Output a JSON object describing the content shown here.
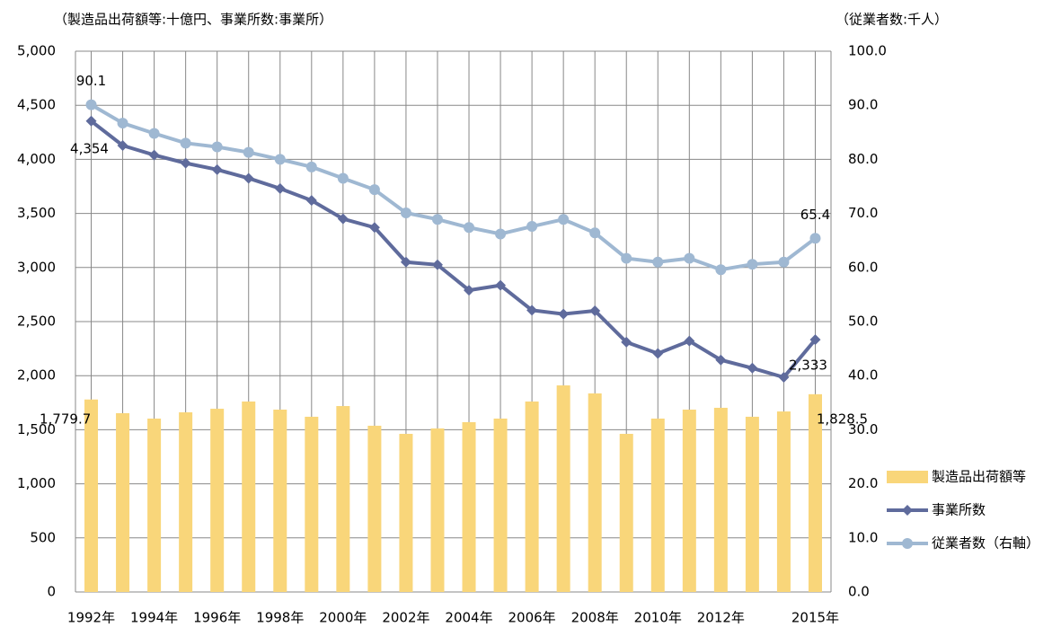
{
  "chart_data": {
    "type": "bar-line",
    "left_axis_label": "（製造品出荷額等:十億円、事業所数:事業所）",
    "right_axis_label": "（従業者数:千人）",
    "categories": [
      "1992年",
      null,
      "1994年",
      null,
      "1996年",
      null,
      "1998年",
      null,
      "2000年",
      null,
      "2002年",
      null,
      "2004年",
      null,
      "2006年",
      null,
      "2008年",
      null,
      "2010年",
      null,
      "2012年",
      null,
      null,
      "2015年"
    ],
    "series": [
      {
        "name": "製造品出荷額等",
        "type": "bar",
        "color": "#f9d67a",
        "values": [
          1779.7,
          1653,
          1603,
          1661,
          1694,
          1761,
          1686,
          1620,
          1719,
          1537,
          1462,
          1512,
          1570,
          1603,
          1761,
          1910,
          1836,
          1462,
          1603,
          1686,
          1703,
          1620,
          1669,
          1828.5
        ],
        "value_labels": [
          "1,779.7",
          null,
          null,
          null,
          null,
          null,
          null,
          null,
          null,
          null,
          null,
          null,
          null,
          null,
          null,
          null,
          null,
          null,
          null,
          null,
          null,
          null,
          null,
          "1,828.5"
        ]
      },
      {
        "name": "事業所数",
        "type": "line",
        "marker": "diamond",
        "color": "#5f6b9c",
        "values": [
          4354,
          4128,
          4040,
          3965,
          3905,
          3825,
          3730,
          3620,
          3450,
          3370,
          3050,
          3025,
          2790,
          2835,
          2605,
          2570,
          2600,
          2310,
          2205,
          2320,
          2145,
          2070,
          1985,
          2333
        ],
        "value_labels": [
          "4,354",
          null,
          null,
          null,
          null,
          null,
          null,
          null,
          null,
          null,
          null,
          null,
          null,
          null,
          null,
          null,
          null,
          null,
          null,
          null,
          null,
          null,
          null,
          "2,333"
        ]
      },
      {
        "name": "従業者数（右軸）",
        "type": "line",
        "marker": "circle",
        "color": "#9fb8d2",
        "axis": "y2",
        "values": [
          90.1,
          86.7,
          84.8,
          83.0,
          82.3,
          81.3,
          80.0,
          78.6,
          76.5,
          74.4,
          70.1,
          68.9,
          67.4,
          66.2,
          67.6,
          68.9,
          66.4,
          61.7,
          61.0,
          61.7,
          59.6,
          60.6,
          61.0,
          65.4
        ],
        "value_labels": [
          "90.1",
          null,
          null,
          null,
          null,
          null,
          null,
          null,
          null,
          null,
          null,
          null,
          null,
          null,
          null,
          null,
          null,
          null,
          null,
          null,
          null,
          null,
          null,
          "65.4"
        ]
      }
    ],
    "ylim": [
      0,
      5000
    ],
    "yticks": [
      0,
      500,
      {
        "value": 1000,
        "label": "1,000"
      },
      {
        "value": 1500,
        "label": "1,500"
      },
      {
        "value": 2000,
        "label": "2,000"
      },
      {
        "value": 2500,
        "label": "2,500"
      },
      {
        "value": 3000,
        "label": "3,000"
      },
      {
        "value": 3500,
        "label": "3,500"
      },
      {
        "value": 4000,
        "label": "4,000"
      },
      {
        "value": 4500,
        "label": "4,500"
      },
      {
        "value": 5000,
        "label": "5,000"
      }
    ],
    "y2lim": [
      0,
      100
    ],
    "y2ticks": [
      {
        "value": 0,
        "label": "0.0"
      },
      {
        "value": 10,
        "label": "10.0"
      },
      {
        "value": 20,
        "label": "20.0"
      },
      {
        "value": 30,
        "label": "30.0"
      },
      {
        "value": 40,
        "label": "40.0"
      },
      {
        "value": 50,
        "label": "50.0"
      },
      {
        "value": 60,
        "label": "60.0"
      },
      {
        "value": 70,
        "label": "70.0"
      },
      {
        "value": 80,
        "label": "80.0"
      },
      {
        "value": 90,
        "label": "90.0"
      },
      {
        "value": 100,
        "label": "100.0"
      }
    ],
    "grid": true,
    "legend": "lower right"
  }
}
